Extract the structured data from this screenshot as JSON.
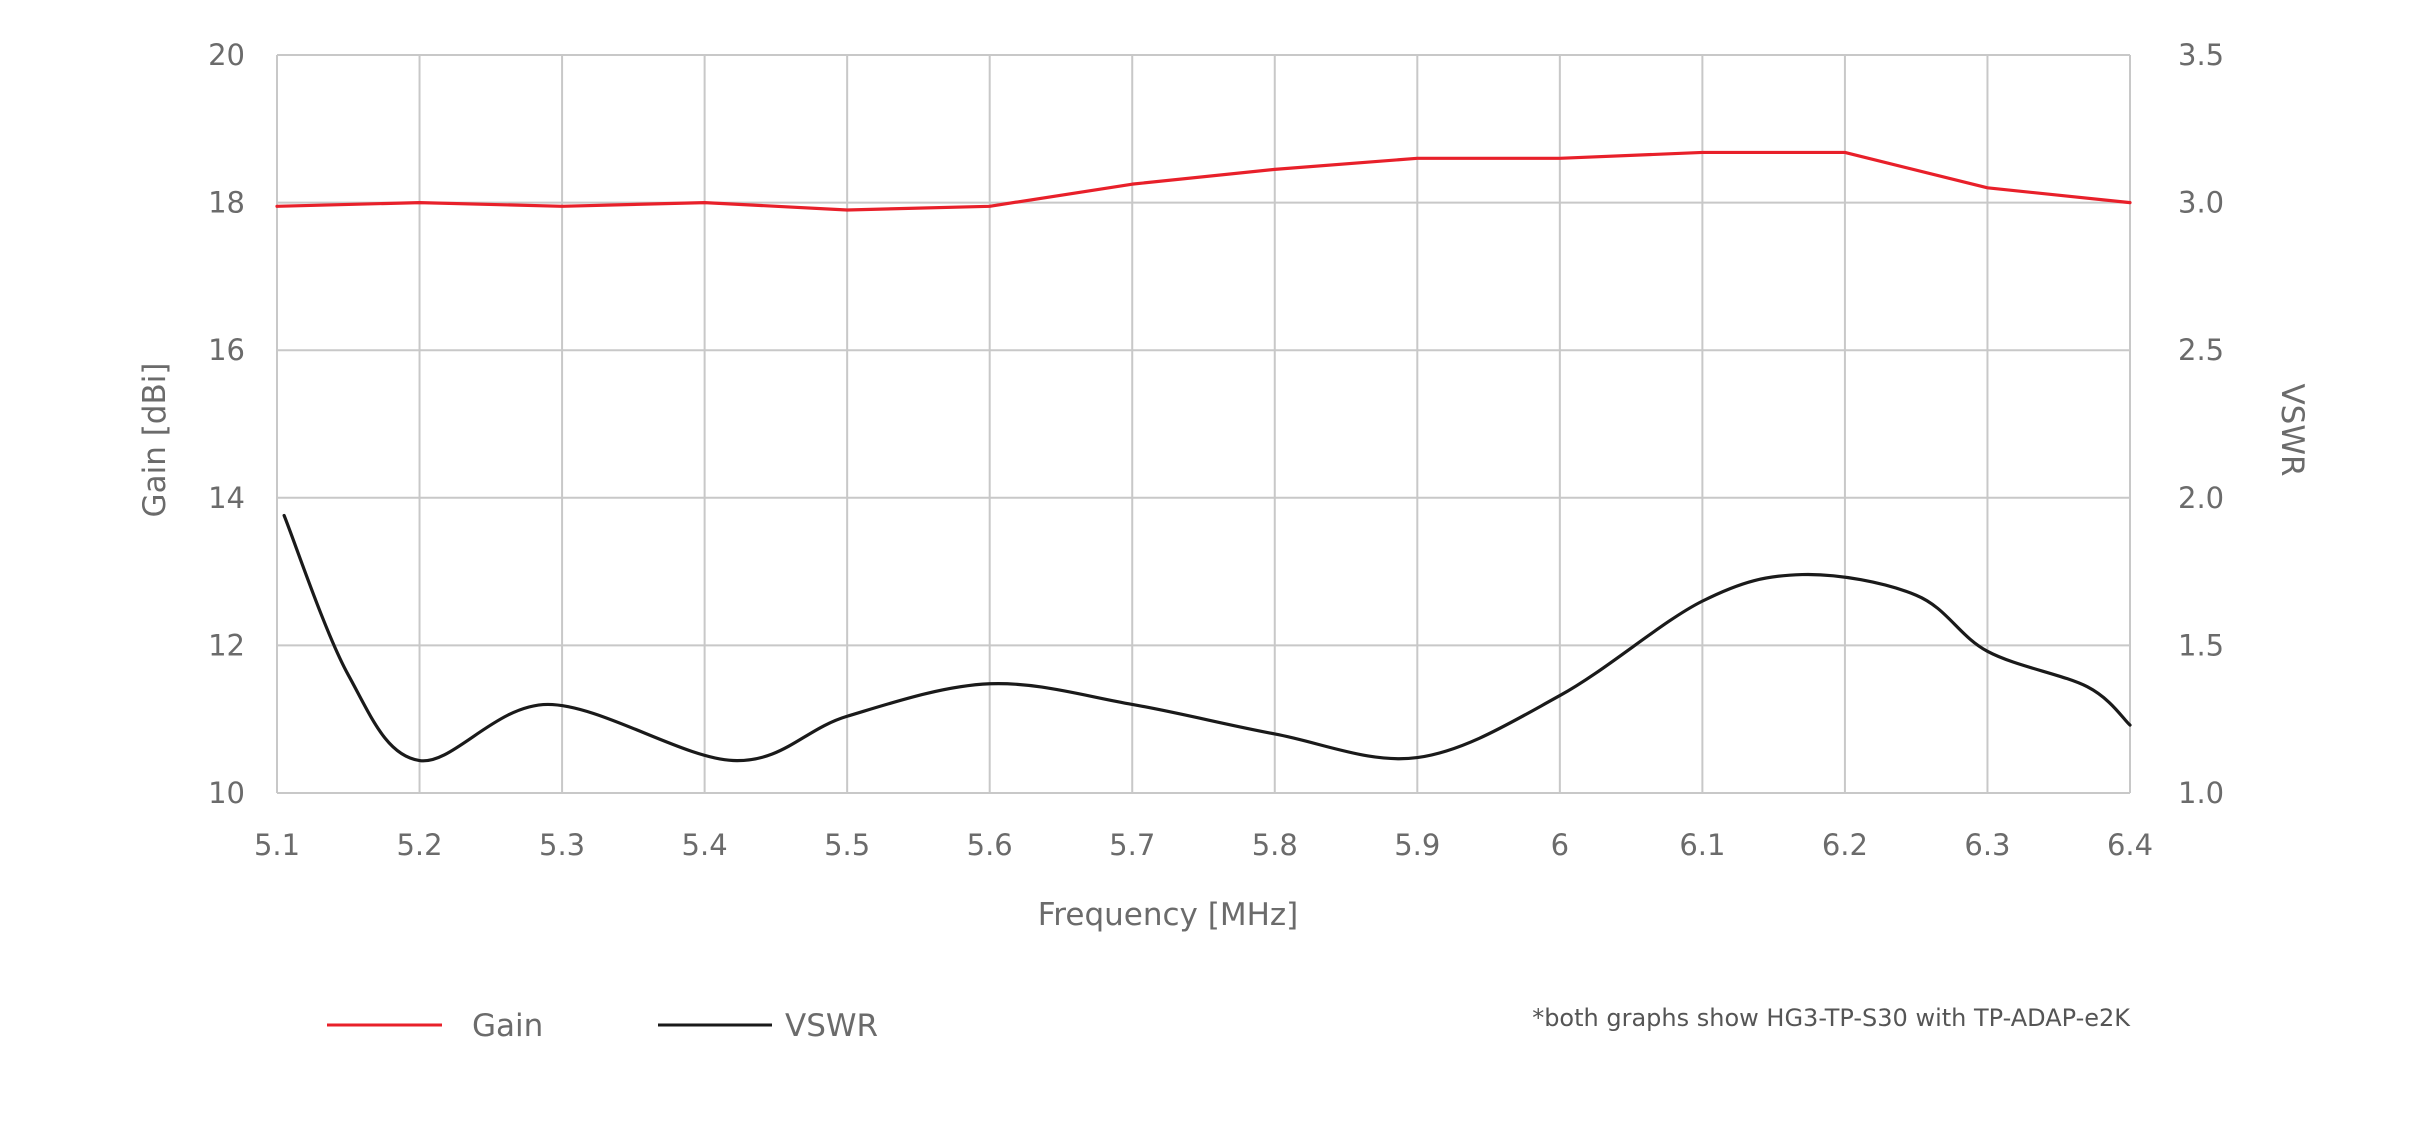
{
  "chart_data": {
    "type": "line",
    "xlabel": "Frequency [MHz]",
    "ylabel_left": "Gain [dBi]",
    "ylabel_right": "VSWR",
    "x_ticks": [
      "5.1",
      "5.2",
      "5.3",
      "5.4",
      "5.5",
      "5.6",
      "5.7",
      "5.8",
      "5.9",
      "6",
      "6.1",
      "6.2",
      "6.3",
      "6.4"
    ],
    "y_left_ticks": [
      "10",
      "12",
      "14",
      "16",
      "18",
      "20"
    ],
    "y_right_ticks": [
      "1.0",
      "1.5",
      "2.0",
      "2.5",
      "3.0",
      "3.5"
    ],
    "xlim": [
      5.1,
      6.4
    ],
    "ylim_left": [
      10,
      20
    ],
    "ylim_right": [
      1.0,
      3.5
    ],
    "grid": true,
    "legend_position": "bottom-left",
    "note": "*both graphs show HG3-TP-S30 with TP-ADAP-e2K",
    "colors": {
      "gain": "#e8202a",
      "vswr": "#1a1a1a",
      "grid": "#c8c8c8"
    },
    "series": [
      {
        "name": "Gain",
        "axis": "left",
        "x": [
          5.1,
          5.2,
          5.3,
          5.4,
          5.5,
          5.6,
          5.7,
          5.8,
          5.9,
          6.0,
          6.1,
          6.2,
          6.3,
          6.4
        ],
        "y": [
          17.95,
          18.0,
          17.95,
          18.0,
          17.9,
          17.95,
          18.25,
          18.45,
          18.6,
          18.6,
          18.68,
          18.68,
          18.2,
          18.0
        ]
      },
      {
        "name": "VSWR",
        "axis": "right",
        "x": [
          5.105,
          5.15,
          5.2,
          5.29,
          5.42,
          5.5,
          5.6,
          5.7,
          5.8,
          5.9,
          6.0,
          6.1,
          6.17,
          6.25,
          6.3,
          6.37,
          6.4
        ],
        "y": [
          1.94,
          1.4,
          1.11,
          1.3,
          1.11,
          1.26,
          1.37,
          1.3,
          1.2,
          1.12,
          1.33,
          1.65,
          1.74,
          1.67,
          1.48,
          1.36,
          1.23
        ]
      }
    ]
  }
}
